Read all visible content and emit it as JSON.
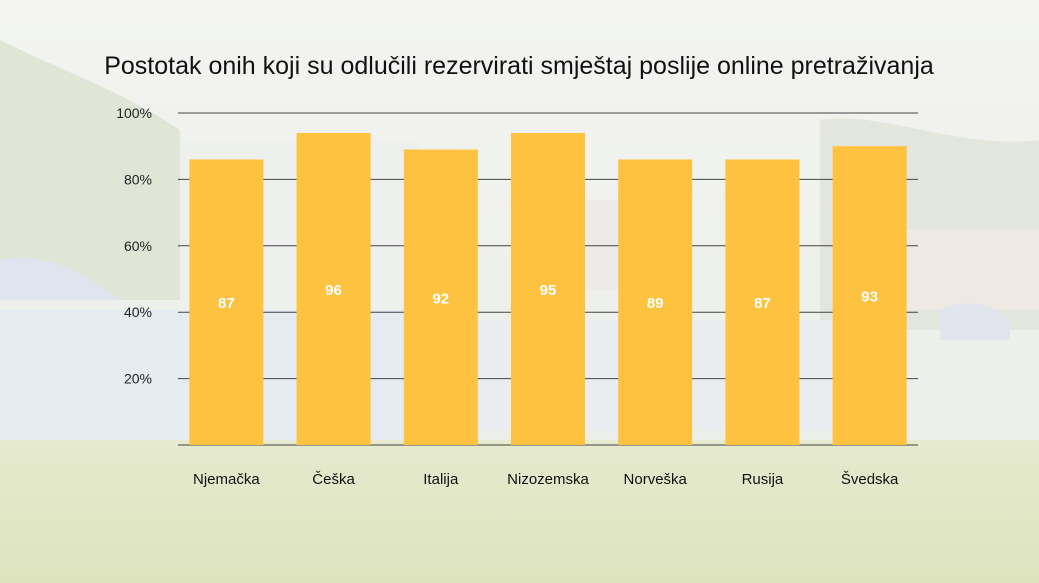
{
  "chart_data": {
    "type": "bar",
    "title": "Postotak onih koji su odlučili rezervirati smještaj poslije online pretraživanja",
    "categories": [
      "Njemačka",
      "Češka",
      "Italija",
      "Nizozemska",
      "Norveška",
      "Rusija",
      "Švedska"
    ],
    "values": [
      87,
      96,
      92,
      95,
      89,
      87,
      93
    ],
    "bar_heights_on_axis": [
      86,
      94,
      89,
      94,
      86,
      86,
      90
    ],
    "ylim": [
      0,
      100
    ],
    "yticks": [
      "20%",
      "40%",
      "60%",
      "80%",
      "100%"
    ],
    "xlabel": "",
    "ylabel": "",
    "grid": true,
    "legend": "none",
    "colors": {
      "bar": "#fdc340",
      "gridline": "#444444",
      "value_label": "#ffffff"
    }
  }
}
